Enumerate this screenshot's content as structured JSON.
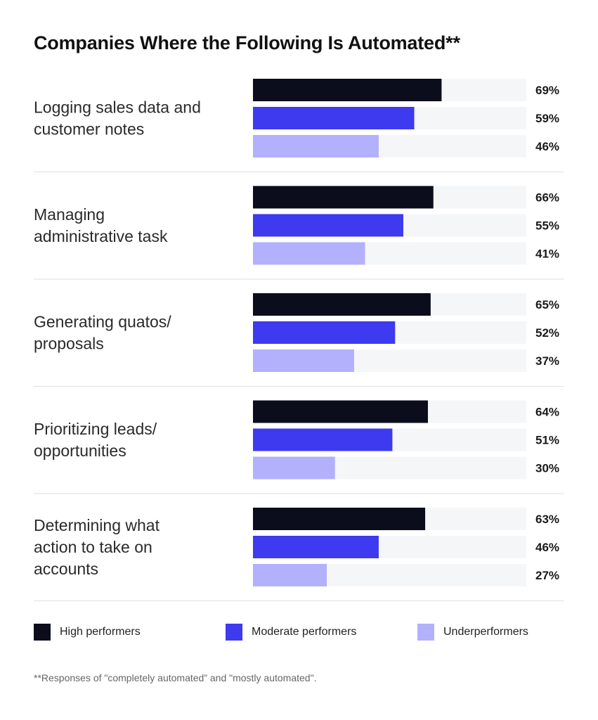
{
  "chart_data": {
    "type": "bar",
    "orientation": "horizontal",
    "title": "Companies Where the Following Is Automated**",
    "categories": [
      "Logging sales data and customer notes",
      "Managing administrative task",
      "Generating quatos/ proposals",
      "Prioritizing leads/ opportunities",
      "Determining what action to take on accounts"
    ],
    "category_lines": [
      [
        "Logging sales data and",
        "customer notes"
      ],
      [
        "Managing",
        "administrative task"
      ],
      [
        "Generating quatos/",
        "proposals"
      ],
      [
        "Prioritizing leads/",
        "opportunities"
      ],
      [
        "Determining what",
        "action to take on",
        "accounts"
      ]
    ],
    "series": [
      {
        "name": "High performers",
        "values": [
          69,
          66,
          65,
          64,
          63
        ],
        "color": "#0b0d1c"
      },
      {
        "name": "Moderate performers",
        "values": [
          59,
          55,
          52,
          51,
          46
        ],
        "color": "#3d3af0"
      },
      {
        "name": "Underperformers",
        "values": [
          46,
          41,
          37,
          30,
          27
        ],
        "color": "#b3b0fc"
      }
    ],
    "value_suffix": "%",
    "xlim": [
      0,
      100
    ],
    "track_color": "#f5f6f8",
    "grid": false,
    "legend_position": "bottom",
    "footnote": "**Responses of \"completely automated” and \"mostly automated\"."
  }
}
